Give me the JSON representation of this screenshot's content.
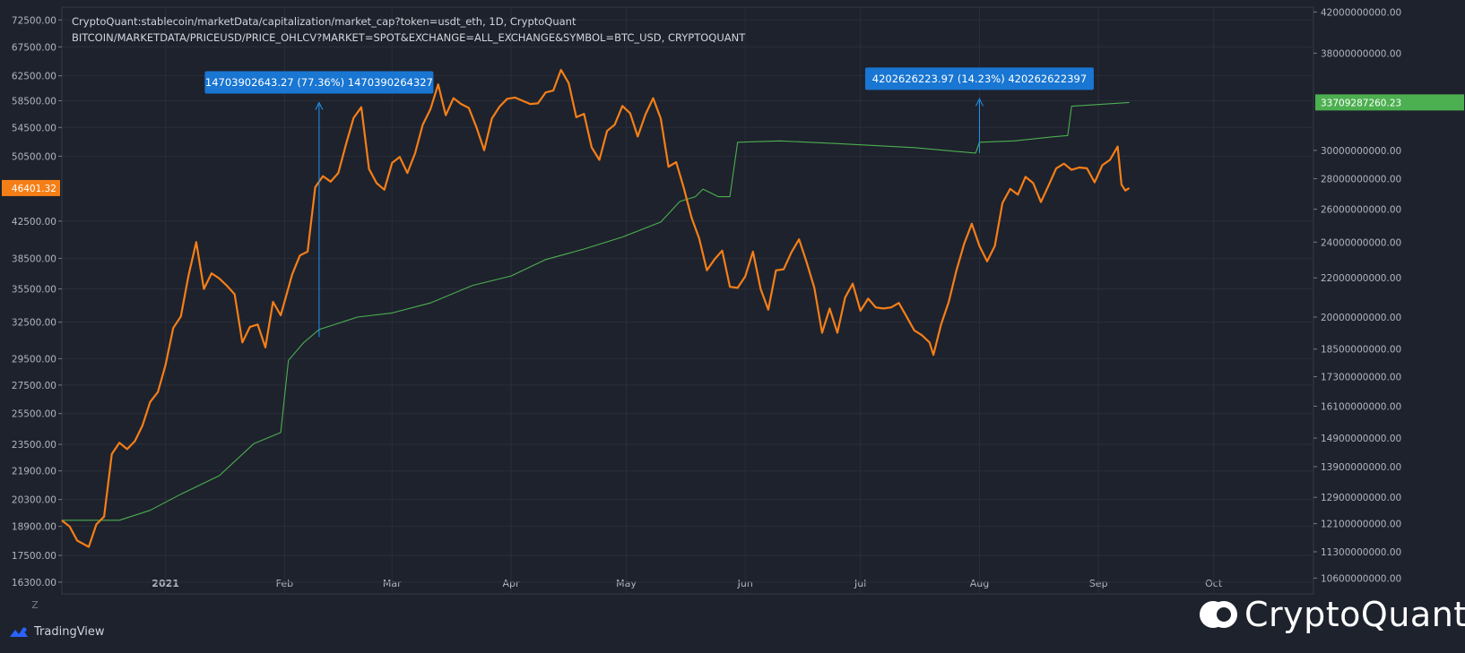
{
  "legend": {
    "line1": "CryptoQuant:stablecoin/marketData/capitalization/market_cap?token=usdt_eth, 1D, CryptoQuant",
    "line2": "BITCOIN/MARKETDATA/PRICEUSD/PRICE_OHLCV?MARKET=SPOT&EXCHANGE=ALL_EXCHANGE&SYMBOL=BTC_USD, CRYPTOQUANT"
  },
  "branding": {
    "tradingview": "TradingView",
    "cryptoquant": "CryptoQuant",
    "z_label": "Z"
  },
  "colors": {
    "background": "#1e222d",
    "price_series": "#f57f17",
    "marketcap_series": "#4caf50",
    "annotation": "#2196f3",
    "grid": "#2a2e39"
  },
  "chart_data": {
    "type": "line",
    "x_ticks": [
      "2021",
      "Feb",
      "Mar",
      "Apr",
      "May",
      "Jun",
      "Jul",
      "Aug",
      "Sep",
      "Oct"
    ],
    "x_range": [
      "2020-12-05",
      "2021-10-27"
    ],
    "left_axis": {
      "scale": "log",
      "ticks": [
        "72500.00",
        "67500.00",
        "62500.00",
        "58500.00",
        "54500.00",
        "50500.00",
        "42500.00",
        "38500.00",
        "35500.00",
        "32500.00",
        "29500.00",
        "27500.00",
        "25500.00",
        "23500.00",
        "21900.00",
        "20300.00",
        "18900.00",
        "17500.00",
        "16300.00"
      ],
      "range": [
        15800,
        75000
      ],
      "last_value_label": "46401.32"
    },
    "right_axis": {
      "scale": "log",
      "ticks": [
        "42000000000.00",
        "38000000000.00",
        "30000000000.00",
        "28000000000.00",
        "26000000000.00",
        "24000000000.00",
        "22000000000.00",
        "20000000000.00",
        "18500000000.00",
        "17300000000.00",
        "16100000000.00",
        "14900000000.00",
        "13900000000.00",
        "12900000000.00",
        "12100000000.00",
        "11300000000.00",
        "10600000000.00"
      ],
      "range": [
        10200000000,
        42500000000
      ],
      "last_value_label": "33709287260.23"
    },
    "series": [
      {
        "axis": "left",
        "points": [
          [
            "2020-12-05",
            19200
          ],
          [
            "2020-12-07",
            18900
          ],
          [
            "2020-12-09",
            18200
          ],
          [
            "2020-12-12",
            17900
          ],
          [
            "2020-12-14",
            19000
          ],
          [
            "2020-12-16",
            19400
          ],
          [
            "2020-12-18",
            22900
          ],
          [
            "2020-12-20",
            23600
          ],
          [
            "2020-12-22",
            23200
          ],
          [
            "2020-12-24",
            23700
          ],
          [
            "2020-12-26",
            24700
          ],
          [
            "2020-12-28",
            26300
          ],
          [
            "2020-12-30",
            27000
          ],
          [
            "2021-01-01",
            29000
          ],
          [
            "2021-01-03",
            32000
          ],
          [
            "2021-01-05",
            33000
          ],
          [
            "2021-01-07",
            36800
          ],
          [
            "2021-01-09",
            40200
          ],
          [
            "2021-01-11",
            35500
          ],
          [
            "2021-01-13",
            37000
          ],
          [
            "2021-01-15",
            36500
          ],
          [
            "2021-01-17",
            35800
          ],
          [
            "2021-01-19",
            35000
          ],
          [
            "2021-01-21",
            30800
          ],
          [
            "2021-01-23",
            32100
          ],
          [
            "2021-01-25",
            32300
          ],
          [
            "2021-01-27",
            30400
          ],
          [
            "2021-01-29",
            34300
          ],
          [
            "2021-01-31",
            33100
          ],
          [
            "2021-02-03",
            36900
          ],
          [
            "2021-02-05",
            38800
          ],
          [
            "2021-02-07",
            39200
          ],
          [
            "2021-02-09",
            46500
          ],
          [
            "2021-02-11",
            47900
          ],
          [
            "2021-02-13",
            47200
          ],
          [
            "2021-02-15",
            48300
          ],
          [
            "2021-02-17",
            52100
          ],
          [
            "2021-02-19",
            55900
          ],
          [
            "2021-02-21",
            57500
          ],
          [
            "2021-02-23",
            48800
          ],
          [
            "2021-02-25",
            47000
          ],
          [
            "2021-02-27",
            46200
          ],
          [
            "2021-03-01",
            49600
          ],
          [
            "2021-03-03",
            50400
          ],
          [
            "2021-03-05",
            48300
          ],
          [
            "2021-03-07",
            50900
          ],
          [
            "2021-03-09",
            54900
          ],
          [
            "2021-03-11",
            57200
          ],
          [
            "2021-03-13",
            61100
          ],
          [
            "2021-03-15",
            56300
          ],
          [
            "2021-03-17",
            58900
          ],
          [
            "2021-03-19",
            58000
          ],
          [
            "2021-03-21",
            57400
          ],
          [
            "2021-03-23",
            54500
          ],
          [
            "2021-03-25",
            51300
          ],
          [
            "2021-03-27",
            55800
          ],
          [
            "2021-03-29",
            57600
          ],
          [
            "2021-03-31",
            58800
          ],
          [
            "2021-04-02",
            59000
          ],
          [
            "2021-04-04",
            58500
          ],
          [
            "2021-04-06",
            58000
          ],
          [
            "2021-04-08",
            58100
          ],
          [
            "2021-04-10",
            59800
          ],
          [
            "2021-04-12",
            60100
          ],
          [
            "2021-04-14",
            63500
          ],
          [
            "2021-04-16",
            61300
          ],
          [
            "2021-04-18",
            56000
          ],
          [
            "2021-04-20",
            56500
          ],
          [
            "2021-04-22",
            51700
          ],
          [
            "2021-04-24",
            50000
          ],
          [
            "2021-04-26",
            54000
          ],
          [
            "2021-04-28",
            54900
          ],
          [
            "2021-04-30",
            57700
          ],
          [
            "2021-05-02",
            56600
          ],
          [
            "2021-05-04",
            53200
          ],
          [
            "2021-05-06",
            56400
          ],
          [
            "2021-05-08",
            58900
          ],
          [
            "2021-05-10",
            55800
          ],
          [
            "2021-05-12",
            49100
          ],
          [
            "2021-05-14",
            49700
          ],
          [
            "2021-05-16",
            46400
          ],
          [
            "2021-05-18",
            42900
          ],
          [
            "2021-05-20",
            40600
          ],
          [
            "2021-05-22",
            37300
          ],
          [
            "2021-05-24",
            38400
          ],
          [
            "2021-05-26",
            39300
          ],
          [
            "2021-05-28",
            35700
          ],
          [
            "2021-05-30",
            35600
          ],
          [
            "2021-06-01",
            36700
          ],
          [
            "2021-06-03",
            39200
          ],
          [
            "2021-06-05",
            35500
          ],
          [
            "2021-06-07",
            33600
          ],
          [
            "2021-06-09",
            37300
          ],
          [
            "2021-06-11",
            37400
          ],
          [
            "2021-06-13",
            39100
          ],
          [
            "2021-06-15",
            40500
          ],
          [
            "2021-06-17",
            38100
          ],
          [
            "2021-06-19",
            35600
          ],
          [
            "2021-06-21",
            31600
          ],
          [
            "2021-06-23",
            33700
          ],
          [
            "2021-06-25",
            31600
          ],
          [
            "2021-06-27",
            34700
          ],
          [
            "2021-06-29",
            36000
          ],
          [
            "2021-07-01",
            33500
          ],
          [
            "2021-07-03",
            34600
          ],
          [
            "2021-07-05",
            33800
          ],
          [
            "2021-07-07",
            33700
          ],
          [
            "2021-07-09",
            33800
          ],
          [
            "2021-07-11",
            34200
          ],
          [
            "2021-07-13",
            33000
          ],
          [
            "2021-07-15",
            31800
          ],
          [
            "2021-07-17",
            31400
          ],
          [
            "2021-07-19",
            30800
          ],
          [
            "2021-07-20",
            29800
          ],
          [
            "2021-07-22",
            32300
          ],
          [
            "2021-07-24",
            34300
          ],
          [
            "2021-07-26",
            37300
          ],
          [
            "2021-07-28",
            40000
          ],
          [
            "2021-07-30",
            42200
          ],
          [
            "2021-08-01",
            39800
          ],
          [
            "2021-08-03",
            38200
          ],
          [
            "2021-08-05",
            39800
          ],
          [
            "2021-08-07",
            44600
          ],
          [
            "2021-08-09",
            46300
          ],
          [
            "2021-08-11",
            45600
          ],
          [
            "2021-08-13",
            47800
          ],
          [
            "2021-08-15",
            47000
          ],
          [
            "2021-08-17",
            44700
          ],
          [
            "2021-08-19",
            46700
          ],
          [
            "2021-08-21",
            48900
          ],
          [
            "2021-08-23",
            49500
          ],
          [
            "2021-08-25",
            48700
          ],
          [
            "2021-08-27",
            49000
          ],
          [
            "2021-08-29",
            48900
          ],
          [
            "2021-08-31",
            47100
          ],
          [
            "2021-09-02",
            49300
          ],
          [
            "2021-09-04",
            50000
          ],
          [
            "2021-09-06",
            51800
          ],
          [
            "2021-09-07",
            46800
          ],
          [
            "2021-09-08",
            46100
          ],
          [
            "2021-09-09",
            46401.32
          ]
        ]
      },
      {
        "axis": "right",
        "points": [
          [
            "2020-12-05",
            12200000000
          ],
          [
            "2020-12-20",
            12200000000
          ],
          [
            "2020-12-28",
            12500000000
          ],
          [
            "2021-01-05",
            13000000000
          ],
          [
            "2021-01-15",
            13600000000
          ],
          [
            "2021-01-24",
            14700000000
          ],
          [
            "2021-01-31",
            15100000000
          ],
          [
            "2021-02-02",
            18000000000
          ],
          [
            "2021-02-06",
            18800000000
          ],
          [
            "2021-02-10",
            19400000000
          ],
          [
            "2021-02-20",
            20000000000
          ],
          [
            "2021-03-01",
            20200000000
          ],
          [
            "2021-03-11",
            20700000000
          ],
          [
            "2021-03-22",
            21600000000
          ],
          [
            "2021-04-01",
            22100000000
          ],
          [
            "2021-04-10",
            23000000000
          ],
          [
            "2021-04-20",
            23600000000
          ],
          [
            "2021-04-30",
            24300000000
          ],
          [
            "2021-05-10",
            25200000000
          ],
          [
            "2021-05-15",
            26500000000
          ],
          [
            "2021-05-19",
            26800000000
          ],
          [
            "2021-05-21",
            27300000000
          ],
          [
            "2021-05-25",
            26800000000
          ],
          [
            "2021-05-28",
            26800000000
          ],
          [
            "2021-05-30",
            30600000000
          ],
          [
            "2021-06-10",
            30700000000
          ],
          [
            "2021-06-25",
            30500000000
          ],
          [
            "2021-07-15",
            30200000000
          ],
          [
            "2021-07-31",
            29800000000
          ],
          [
            "2021-08-01",
            30600000000
          ],
          [
            "2021-08-10",
            30700000000
          ],
          [
            "2021-08-20",
            31000000000
          ],
          [
            "2021-08-24",
            31100000000
          ],
          [
            "2021-08-25",
            33400000000
          ],
          [
            "2021-09-09",
            33709287260.23
          ]
        ]
      }
    ],
    "annotations": [
      {
        "label": "14703902643.27 (77.36%) 1470390264327",
        "date": "2021-02-10",
        "from": 19050000000,
        "to": 33700000000
      },
      {
        "label": "4202626223.97 (14.23%) 420262622397",
        "date": "2021-08-01",
        "from": 29800000000,
        "to": 34000000000
      }
    ]
  }
}
